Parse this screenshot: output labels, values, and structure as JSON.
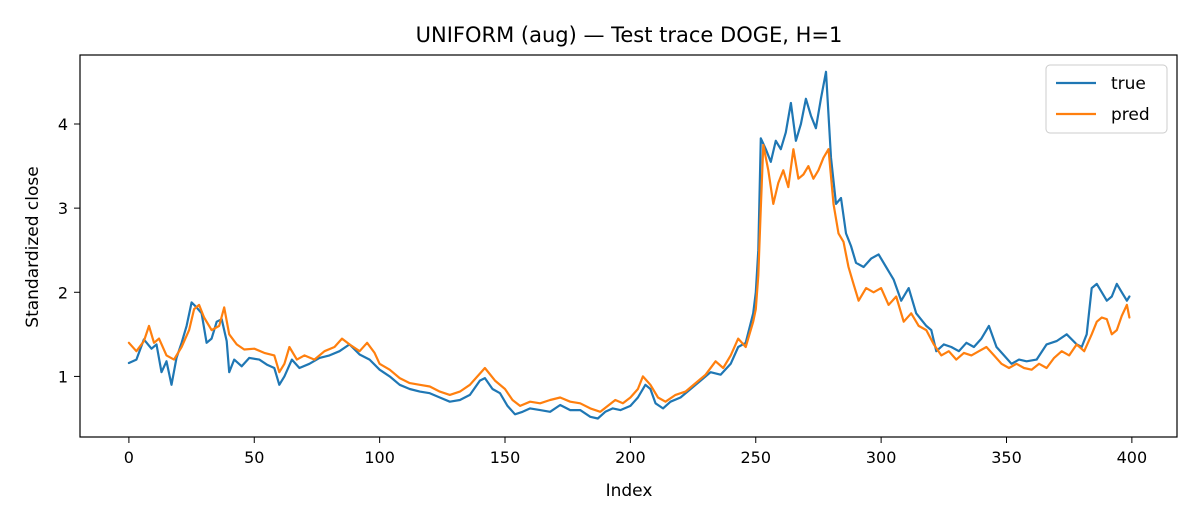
{
  "chart_data": {
    "type": "line",
    "title": "UNIFORM (aug) — Test trace DOGE, H=1",
    "xlabel": "Index",
    "ylabel": "Standardized close",
    "xlim": [
      -19.5,
      418
    ],
    "ylim": [
      0.28,
      4.82
    ],
    "xticks": [
      0,
      50,
      100,
      150,
      200,
      250,
      300,
      350,
      400
    ],
    "yticks": [
      1,
      2,
      3,
      4
    ],
    "grid": false,
    "legend_position": "top-right",
    "series": [
      {
        "name": "true",
        "color": "#1f77b4",
        "points": [
          [
            0,
            1.16
          ],
          [
            3,
            1.2
          ],
          [
            6,
            1.44
          ],
          [
            9,
            1.33
          ],
          [
            11,
            1.38
          ],
          [
            13,
            1.05
          ],
          [
            15,
            1.18
          ],
          [
            17,
            0.9
          ],
          [
            19,
            1.22
          ],
          [
            21,
            1.4
          ],
          [
            23,
            1.6
          ],
          [
            25,
            1.88
          ],
          [
            27,
            1.82
          ],
          [
            29,
            1.75
          ],
          [
            31,
            1.4
          ],
          [
            33,
            1.45
          ],
          [
            35,
            1.65
          ],
          [
            37,
            1.68
          ],
          [
            39,
            1.42
          ],
          [
            40,
            1.05
          ],
          [
            42,
            1.2
          ],
          [
            45,
            1.12
          ],
          [
            48,
            1.22
          ],
          [
            52,
            1.2
          ],
          [
            55,
            1.14
          ],
          [
            58,
            1.1
          ],
          [
            60,
            0.9
          ],
          [
            62,
            1.0
          ],
          [
            65,
            1.2
          ],
          [
            68,
            1.1
          ],
          [
            72,
            1.15
          ],
          [
            76,
            1.22
          ],
          [
            80,
            1.25
          ],
          [
            84,
            1.3
          ],
          [
            88,
            1.38
          ],
          [
            92,
            1.26
          ],
          [
            96,
            1.2
          ],
          [
            100,
            1.08
          ],
          [
            104,
            1.0
          ],
          [
            108,
            0.9
          ],
          [
            112,
            0.85
          ],
          [
            116,
            0.82
          ],
          [
            120,
            0.8
          ],
          [
            124,
            0.75
          ],
          [
            128,
            0.7
          ],
          [
            132,
            0.72
          ],
          [
            136,
            0.78
          ],
          [
            140,
            0.95
          ],
          [
            142,
            0.98
          ],
          [
            145,
            0.85
          ],
          [
            148,
            0.8
          ],
          [
            151,
            0.65
          ],
          [
            154,
            0.55
          ],
          [
            157,
            0.58
          ],
          [
            160,
            0.62
          ],
          [
            164,
            0.6
          ],
          [
            168,
            0.58
          ],
          [
            172,
            0.66
          ],
          [
            176,
            0.6
          ],
          [
            180,
            0.6
          ],
          [
            184,
            0.52
          ],
          [
            187,
            0.5
          ],
          [
            190,
            0.58
          ],
          [
            193,
            0.62
          ],
          [
            196,
            0.6
          ],
          [
            200,
            0.65
          ],
          [
            203,
            0.75
          ],
          [
            206,
            0.9
          ],
          [
            208,
            0.85
          ],
          [
            210,
            0.68
          ],
          [
            213,
            0.62
          ],
          [
            216,
            0.7
          ],
          [
            220,
            0.75
          ],
          [
            224,
            0.85
          ],
          [
            228,
            0.95
          ],
          [
            232,
            1.05
          ],
          [
            236,
            1.02
          ],
          [
            240,
            1.15
          ],
          [
            243,
            1.35
          ],
          [
            246,
            1.4
          ],
          [
            249,
            1.75
          ],
          [
            250,
            2.0
          ],
          [
            251,
            2.5
          ],
          [
            252,
            3.83
          ],
          [
            254,
            3.7
          ],
          [
            256,
            3.55
          ],
          [
            258,
            3.8
          ],
          [
            260,
            3.7
          ],
          [
            262,
            3.9
          ],
          [
            264,
            4.25
          ],
          [
            266,
            3.8
          ],
          [
            268,
            4.0
          ],
          [
            270,
            4.3
          ],
          [
            272,
            4.1
          ],
          [
            274,
            3.95
          ],
          [
            276,
            4.3
          ],
          [
            278,
            4.62
          ],
          [
            280,
            3.6
          ],
          [
            282,
            3.05
          ],
          [
            284,
            3.12
          ],
          [
            286,
            2.7
          ],
          [
            288,
            2.55
          ],
          [
            290,
            2.35
          ],
          [
            293,
            2.3
          ],
          [
            296,
            2.4
          ],
          [
            299,
            2.45
          ],
          [
            302,
            2.3
          ],
          [
            305,
            2.15
          ],
          [
            308,
            1.9
          ],
          [
            311,
            2.05
          ],
          [
            314,
            1.75
          ],
          [
            318,
            1.6
          ],
          [
            320,
            1.55
          ],
          [
            322,
            1.3
          ],
          [
            325,
            1.38
          ],
          [
            328,
            1.35
          ],
          [
            331,
            1.3
          ],
          [
            334,
            1.4
          ],
          [
            337,
            1.35
          ],
          [
            340,
            1.45
          ],
          [
            343,
            1.6
          ],
          [
            346,
            1.35
          ],
          [
            349,
            1.25
          ],
          [
            352,
            1.15
          ],
          [
            355,
            1.2
          ],
          [
            358,
            1.18
          ],
          [
            362,
            1.2
          ],
          [
            366,
            1.38
          ],
          [
            370,
            1.42
          ],
          [
            374,
            1.5
          ],
          [
            378,
            1.38
          ],
          [
            380,
            1.35
          ],
          [
            382,
            1.5
          ],
          [
            384,
            2.05
          ],
          [
            386,
            2.1
          ],
          [
            388,
            2.0
          ],
          [
            390,
            1.9
          ],
          [
            392,
            1.95
          ],
          [
            394,
            2.1
          ],
          [
            396,
            2.0
          ],
          [
            398,
            1.9
          ],
          [
            399,
            1.95
          ]
        ]
      },
      {
        "name": "pred",
        "color": "#ff7f0e",
        "points": [
          [
            0,
            1.4
          ],
          [
            3,
            1.3
          ],
          [
            6,
            1.42
          ],
          [
            8,
            1.6
          ],
          [
            10,
            1.4
          ],
          [
            12,
            1.45
          ],
          [
            15,
            1.25
          ],
          [
            18,
            1.2
          ],
          [
            21,
            1.35
          ],
          [
            24,
            1.55
          ],
          [
            26,
            1.8
          ],
          [
            28,
            1.85
          ],
          [
            30,
            1.7
          ],
          [
            33,
            1.55
          ],
          [
            36,
            1.6
          ],
          [
            38,
            1.82
          ],
          [
            40,
            1.5
          ],
          [
            43,
            1.38
          ],
          [
            46,
            1.32
          ],
          [
            50,
            1.33
          ],
          [
            54,
            1.28
          ],
          [
            58,
            1.25
          ],
          [
            60,
            1.05
          ],
          [
            62,
            1.15
          ],
          [
            64,
            1.35
          ],
          [
            67,
            1.2
          ],
          [
            70,
            1.25
          ],
          [
            74,
            1.2
          ],
          [
            78,
            1.3
          ],
          [
            82,
            1.35
          ],
          [
            85,
            1.45
          ],
          [
            88,
            1.38
          ],
          [
            92,
            1.3
          ],
          [
            95,
            1.4
          ],
          [
            98,
            1.28
          ],
          [
            100,
            1.15
          ],
          [
            104,
            1.08
          ],
          [
            108,
            0.98
          ],
          [
            112,
            0.92
          ],
          [
            116,
            0.9
          ],
          [
            120,
            0.88
          ],
          [
            124,
            0.82
          ],
          [
            128,
            0.78
          ],
          [
            132,
            0.82
          ],
          [
            136,
            0.9
          ],
          [
            139,
            1.0
          ],
          [
            142,
            1.1
          ],
          [
            146,
            0.95
          ],
          [
            150,
            0.85
          ],
          [
            153,
            0.72
          ],
          [
            156,
            0.65
          ],
          [
            160,
            0.7
          ],
          [
            164,
            0.68
          ],
          [
            168,
            0.72
          ],
          [
            172,
            0.75
          ],
          [
            176,
            0.7
          ],
          [
            180,
            0.68
          ],
          [
            184,
            0.62
          ],
          [
            188,
            0.58
          ],
          [
            191,
            0.65
          ],
          [
            194,
            0.72
          ],
          [
            197,
            0.68
          ],
          [
            200,
            0.75
          ],
          [
            203,
            0.85
          ],
          [
            205,
            1.0
          ],
          [
            208,
            0.9
          ],
          [
            211,
            0.75
          ],
          [
            214,
            0.7
          ],
          [
            218,
            0.78
          ],
          [
            222,
            0.82
          ],
          [
            226,
            0.92
          ],
          [
            230,
            1.02
          ],
          [
            234,
            1.18
          ],
          [
            237,
            1.1
          ],
          [
            240,
            1.25
          ],
          [
            243,
            1.45
          ],
          [
            246,
            1.35
          ],
          [
            249,
            1.65
          ],
          [
            250,
            1.8
          ],
          [
            251,
            2.2
          ],
          [
            252,
            3.0
          ],
          [
            253,
            3.75
          ],
          [
            255,
            3.45
          ],
          [
            257,
            3.05
          ],
          [
            259,
            3.3
          ],
          [
            261,
            3.45
          ],
          [
            263,
            3.25
          ],
          [
            265,
            3.7
          ],
          [
            267,
            3.35
          ],
          [
            269,
            3.4
          ],
          [
            271,
            3.5
          ],
          [
            273,
            3.35
          ],
          [
            275,
            3.45
          ],
          [
            277,
            3.6
          ],
          [
            279,
            3.7
          ],
          [
            281,
            3.05
          ],
          [
            283,
            2.7
          ],
          [
            285,
            2.6
          ],
          [
            287,
            2.3
          ],
          [
            289,
            2.1
          ],
          [
            291,
            1.9
          ],
          [
            294,
            2.05
          ],
          [
            297,
            2.0
          ],
          [
            300,
            2.05
          ],
          [
            303,
            1.85
          ],
          [
            306,
            1.95
          ],
          [
            309,
            1.65
          ],
          [
            312,
            1.75
          ],
          [
            315,
            1.6
          ],
          [
            318,
            1.55
          ],
          [
            321,
            1.38
          ],
          [
            324,
            1.25
          ],
          [
            327,
            1.3
          ],
          [
            330,
            1.2
          ],
          [
            333,
            1.28
          ],
          [
            336,
            1.25
          ],
          [
            339,
            1.3
          ],
          [
            342,
            1.35
          ],
          [
            345,
            1.25
          ],
          [
            348,
            1.15
          ],
          [
            351,
            1.1
          ],
          [
            354,
            1.15
          ],
          [
            357,
            1.1
          ],
          [
            360,
            1.08
          ],
          [
            363,
            1.15
          ],
          [
            366,
            1.1
          ],
          [
            369,
            1.22
          ],
          [
            372,
            1.3
          ],
          [
            375,
            1.25
          ],
          [
            378,
            1.38
          ],
          [
            381,
            1.3
          ],
          [
            384,
            1.5
          ],
          [
            386,
            1.65
          ],
          [
            388,
            1.7
          ],
          [
            390,
            1.68
          ],
          [
            392,
            1.5
          ],
          [
            394,
            1.55
          ],
          [
            396,
            1.72
          ],
          [
            398,
            1.85
          ],
          [
            399,
            1.7
          ]
        ]
      }
    ]
  }
}
